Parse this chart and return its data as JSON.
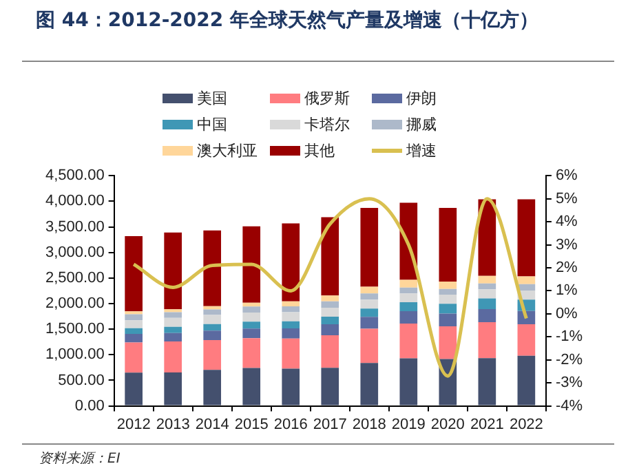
{
  "chart_data": {
    "type": "bar",
    "title": "图 44：2012-2022 年全球天然气产量及增速（十亿方）",
    "categories": [
      "2012",
      "2013",
      "2014",
      "2015",
      "2016",
      "2017",
      "2018",
      "2019",
      "2020",
      "2021",
      "2022"
    ],
    "stacked": true,
    "series": [
      {
        "name": "美国",
        "color": "#44506e",
        "values": [
          649,
          655,
          704,
          740,
          727,
          746,
          840,
          930,
          916,
          934,
          979
        ]
      },
      {
        "name": "俄罗斯",
        "color": "#ff7c80",
        "values": [
          592,
          605,
          581,
          584,
          589,
          636,
          669,
          679,
          638,
          702,
          618
        ]
      },
      {
        "name": "伊朗",
        "color": "#5b6aa0",
        "values": [
          166,
          164,
          185,
          189,
          199,
          214,
          232,
          241,
          250,
          257,
          259
        ]
      },
      {
        "name": "中国",
        "color": "#3f97b5",
        "values": [
          111,
          121,
          131,
          135,
          137,
          149,
          162,
          176,
          194,
          209,
          222
        ]
      },
      {
        "name": "卡塔尔",
        "color": "#d9d9d9",
        "values": [
          157,
          177,
          175,
          176,
          178,
          175,
          175,
          172,
          175,
          177,
          178
        ]
      },
      {
        "name": "挪威",
        "color": "#adb9ca",
        "values": [
          115,
          108,
          108,
          117,
          116,
          124,
          121,
          114,
          112,
          114,
          123
        ]
      },
      {
        "name": "澳大利亚",
        "color": "#ffd69a",
        "values": [
          58,
          60,
          66,
          77,
          96,
          113,
          130,
          153,
          147,
          147,
          153
        ]
      },
      {
        "name": "其他",
        "color": "#990000",
        "values": [
          1472,
          1500,
          1480,
          1492,
          1525,
          1533,
          1541,
          1505,
          1438,
          1500,
          1508
        ]
      },
      {
        "name": "增速",
        "type": "line",
        "axis": "y2",
        "color": "#d9c050",
        "values": [
          2.15,
          1.15,
          2.1,
          2.15,
          1.0,
          3.9,
          5.0,
          3.0,
          -2.7,
          5.0,
          -0.2
        ]
      }
    ],
    "ylim": [
      0,
      4500
    ],
    "yticks": [
      {
        "value": 0,
        "label": "0.00"
      },
      {
        "value": 500,
        "label": "500.00"
      },
      {
        "value": 1000,
        "label": "1,000.00"
      },
      {
        "value": 1500,
        "label": "1,500.00"
      },
      {
        "value": 2000,
        "label": "2,000.00"
      },
      {
        "value": 2500,
        "label": "2,500.00"
      },
      {
        "value": 3000,
        "label": "3,000.00"
      },
      {
        "value": 3500,
        "label": "3,500.00"
      },
      {
        "value": 4000,
        "label": "4,000.00"
      },
      {
        "value": 4500,
        "label": "4,500.00"
      }
    ],
    "y2lim": [
      -4,
      6
    ],
    "y2ticks": [
      {
        "value": -4,
        "label": "-4%"
      },
      {
        "value": -3,
        "label": "-3%"
      },
      {
        "value": -2,
        "label": "-2%"
      },
      {
        "value": -1,
        "label": "-1%"
      },
      {
        "value": 0,
        "label": "0%"
      },
      {
        "value": 1,
        "label": "1%"
      },
      {
        "value": 2,
        "label": "2%"
      },
      {
        "value": 3,
        "label": "3%"
      },
      {
        "value": 4,
        "label": "4%"
      },
      {
        "value": 5,
        "label": "5%"
      },
      {
        "value": 6,
        "label": "6%"
      }
    ],
    "legend": "top",
    "marker": "none",
    "annotations": [
      "资料来源：EI"
    ]
  }
}
